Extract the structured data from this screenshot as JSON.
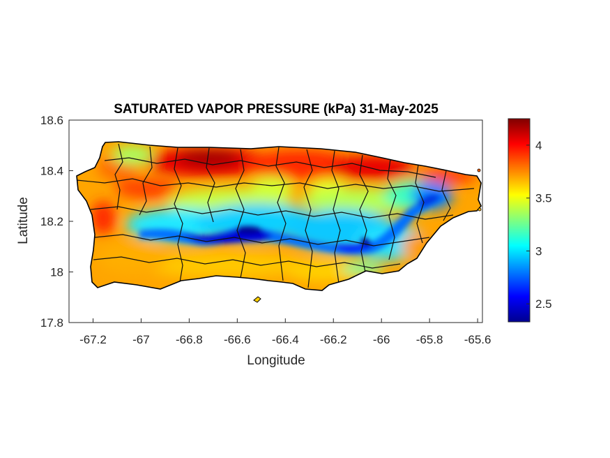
{
  "figure": {
    "title": "SATURATED VAPOR PRESSURE (kPa) 31-May-2025",
    "xlabel": "Longitude",
    "ylabel": "Latitude"
  },
  "map": {
    "region": "Puerto Rico",
    "xlim": [
      -67.3,
      -65.58
    ],
    "ylim": [
      17.8,
      18.6
    ],
    "xticks": [
      -67.2,
      -67,
      -66.8,
      -66.6,
      -66.4,
      -66.2,
      -66,
      -65.8,
      -65.6
    ],
    "yticks": [
      17.8,
      18,
      18.2,
      18.4,
      18.6
    ],
    "colormap": "jet",
    "municipal_boundaries": "black",
    "features": [
      {
        "name": "low-pressure-band",
        "lon": [
          -66.9,
          -66.5,
          -66.2,
          -66.05,
          -65.8
        ],
        "lat": [
          18.15,
          18.17,
          18.14,
          18.13,
          18.27
        ]
      },
      {
        "name": "high-pressure-north-coast",
        "lon": [
          -66.8,
          -66.55,
          -66.1
        ],
        "lat": [
          18.44,
          18.45,
          18.41
        ]
      }
    ]
  },
  "colorbar": {
    "min": 2.33,
    "max": 4.25,
    "ticks": [
      2.5,
      3,
      3.5,
      4
    ],
    "tick_labels": [
      "2.5",
      "3",
      "3.5",
      "4"
    ],
    "colors": [
      "#00008f",
      "#0000ff",
      "#00ffff",
      "#ffff00",
      "#ff0000",
      "#800000"
    ]
  }
}
